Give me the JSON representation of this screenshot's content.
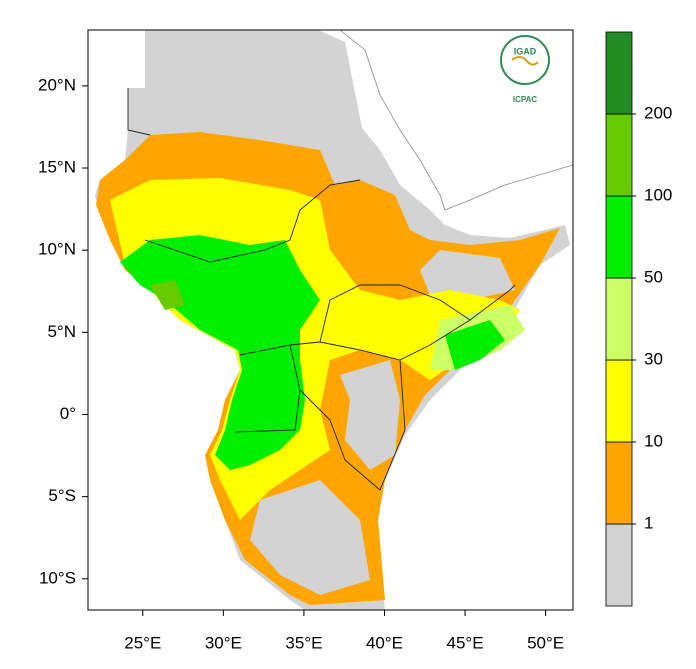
{
  "map": {
    "xlim": [
      21.6,
      51.7
    ],
    "ylim": [
      -11.9,
      23.4
    ],
    "xticks": [
      {
        "value": 25,
        "label": "25°E"
      },
      {
        "value": 30,
        "label": "30°E"
      },
      {
        "value": 35,
        "label": "35°E"
      },
      {
        "value": 40,
        "label": "40°E"
      },
      {
        "value": 45,
        "label": "45°E"
      },
      {
        "value": 50,
        "label": "50°E"
      }
    ],
    "yticks": [
      {
        "value": 20,
        "label": "20°N"
      },
      {
        "value": 15,
        "label": "15°N"
      },
      {
        "value": 10,
        "label": "10°N"
      },
      {
        "value": 5,
        "label": "5°N"
      },
      {
        "value": 0,
        "label": "0°"
      },
      {
        "value": -5,
        "label": "5°S"
      },
      {
        "value": -10,
        "label": "10°S"
      }
    ]
  },
  "colorbar": {
    "levels": [
      1,
      10,
      30,
      50,
      100,
      200
    ],
    "colors": [
      "#d3d3d3",
      "#ffa500",
      "#ffff00",
      "#ccff66",
      "#00ee00",
      "#66cc00",
      "#228b22"
    ]
  },
  "logo": {
    "title": "IGAD",
    "subtitle": "ICPAC"
  }
}
